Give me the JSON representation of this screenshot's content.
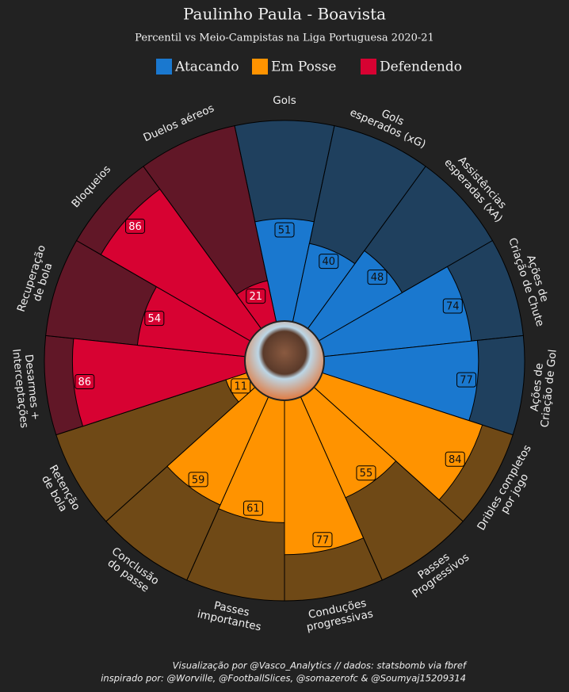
{
  "chart_data": {
    "type": "pizza",
    "title": "Paulinho Paula - Boavista",
    "subtitle": "Percentil vs Meio-Campistas na Liga Portuguesa 2020-21",
    "categories": [
      [
        "Gols"
      ],
      [
        "Gols",
        "esperados (xG)"
      ],
      [
        "Assistências",
        "esperadas (xA)"
      ],
      [
        "Ações de",
        "Criação de Chute"
      ],
      [
        "Ações de",
        "Criação de Gol"
      ],
      [
        "Dribles completos",
        "por jogo"
      ],
      [
        "Passes",
        "Progressivos"
      ],
      [
        "Conduções",
        "progressivas"
      ],
      [
        "Passes",
        "importantes"
      ],
      [
        "Conclusão",
        "do passe"
      ],
      [
        "Retenção",
        "de bola"
      ],
      [
        "Desarmes +",
        "Interceptações"
      ],
      [
        "Recuperação",
        "de bola"
      ],
      [
        "Bloqueios"
      ],
      [
        "Duelos aéreos"
      ]
    ],
    "series": [
      {
        "name": "Atacando",
        "color": "#1a78cf",
        "values": [
          51,
          40,
          48,
          74,
          77,
          null,
          null,
          null,
          null,
          null,
          null,
          null,
          null,
          null,
          null
        ]
      },
      {
        "name": "Em Posse",
        "color": "#ff9300",
        "values": [
          null,
          null,
          null,
          null,
          null,
          84,
          55,
          77,
          61,
          59,
          11,
          null,
          null,
          null,
          null
        ]
      },
      {
        "name": "Defendendo",
        "color": "#d70232",
        "values": [
          null,
          null,
          null,
          null,
          null,
          null,
          null,
          null,
          null,
          null,
          null,
          86,
          54,
          86,
          21
        ]
      }
    ],
    "rlim": [
      0,
      100
    ],
    "footer": [
      "Visualização por @Vasco_Analytics // dados: statsbomb via fbref",
      "inspirado por: @Worville, @FootballSlices, @somazerofc & @Soumyaj15209314"
    ]
  }
}
